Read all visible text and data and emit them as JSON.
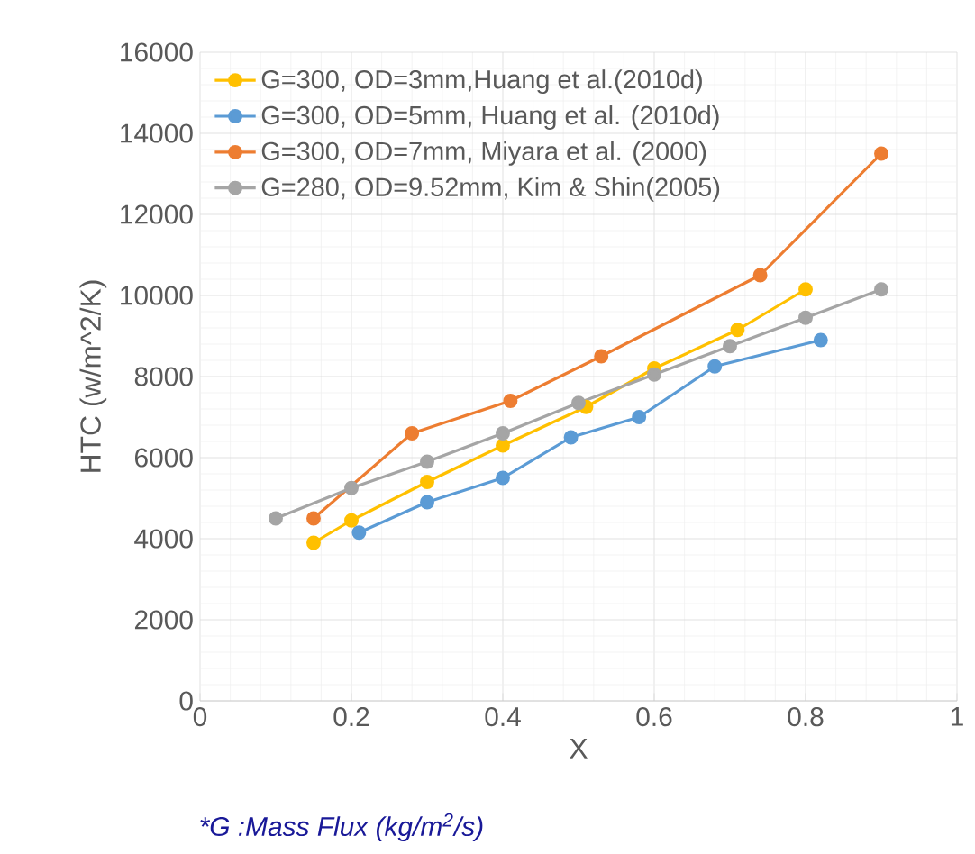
{
  "chart_data": {
    "type": "line",
    "xlabel": "X",
    "ylabel": "HTC (w/m^2/K)",
    "xlim": [
      0,
      1
    ],
    "xticks": [
      0,
      0.2,
      0.4,
      0.6,
      0.8,
      1
    ],
    "ylim": [
      0,
      16000
    ],
    "yticks": [
      0,
      2000,
      4000,
      6000,
      8000,
      10000,
      12000,
      14000,
      16000
    ],
    "grid": true,
    "legend": "top left",
    "marker": "circle",
    "line_style": "solid",
    "annotations": [
      "*G :Mass Flux (kg/m$^{2}$/s)"
    ],
    "series": [
      {
        "name": "G=300, OD=3mm,Huang et al.(2010d)",
        "color": "#ffc000",
        "x": [
          0.15,
          0.2,
          0.3,
          0.4,
          0.51,
          0.6,
          0.71,
          0.8
        ],
        "values": [
          3900,
          4450,
          5400,
          6300,
          7250,
          8200,
          9150,
          10150
        ]
      },
      {
        "name": "G=300, OD=5mm, Huang et al. (2010d)",
        "color": "#5b9bd5",
        "x": [
          0.21,
          0.3,
          0.4,
          0.49,
          0.58,
          0.68,
          0.82
        ],
        "values": [
          4150,
          4900,
          5500,
          6500,
          7000,
          8250,
          8900
        ]
      },
      {
        "name": "G=300, OD=7mm, Miyara et al. (2000)",
        "color": "#ed7d31",
        "x": [
          0.15,
          0.28,
          0.41,
          0.53,
          0.74,
          0.9
        ],
        "values": [
          4500,
          6600,
          7400,
          8500,
          10500,
          13500
        ]
      },
      {
        "name": "G=280, OD=9.52mm, Kim & Shin(2005)",
        "color": "#a5a5a5",
        "x": [
          0.1,
          0.2,
          0.3,
          0.4,
          0.5,
          0.6,
          0.7,
          0.8,
          0.9
        ],
        "values": [
          4500,
          5250,
          5900,
          6600,
          7350,
          8050,
          8750,
          9450,
          10150
        ]
      }
    ]
  }
}
